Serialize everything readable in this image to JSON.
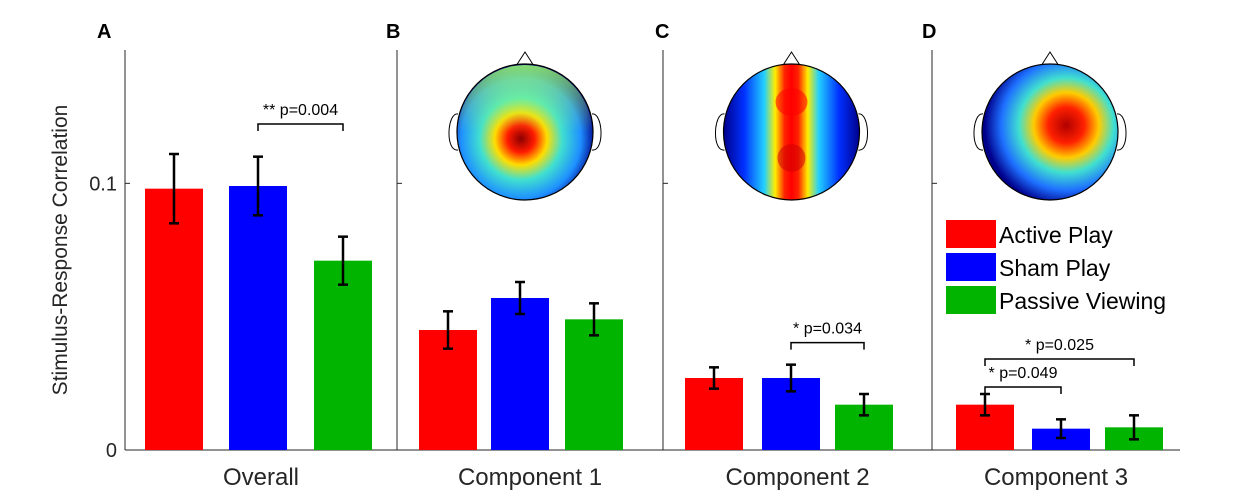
{
  "figure": {
    "ylabel": "Stimulus-Response Correlation",
    "ylim": [
      0,
      0.15
    ],
    "yticks": [
      {
        "value": 0,
        "label": "0"
      },
      {
        "value": 0.1,
        "label": "0.1"
      }
    ]
  },
  "legend": {
    "placement": "right, panel D",
    "entries": [
      {
        "label": "Active Play",
        "color": "#ff0000"
      },
      {
        "label": "Sham Play",
        "color": "#0000ff"
      },
      {
        "label": "Passive Viewing",
        "color": "#00b400"
      }
    ]
  },
  "chart_data": [
    {
      "type": "bar",
      "panel": "A",
      "xlabel": "Overall",
      "categories": [
        "Active Play",
        "Sham Play",
        "Passive Viewing"
      ],
      "values": [
        0.098,
        0.099,
        0.071
      ],
      "errors": [
        0.013,
        0.011,
        0.009
      ],
      "significance": [
        {
          "from": 1,
          "to": 2,
          "label": "** p=0.004"
        }
      ]
    },
    {
      "type": "bar",
      "panel": "B",
      "xlabel": "Component 1",
      "categories": [
        "Active Play",
        "Sham Play",
        "Passive Viewing"
      ],
      "values": [
        0.045,
        0.057,
        0.049
      ],
      "errors": [
        0.007,
        0.006,
        0.006
      ],
      "significance": [],
      "topomap": "frontal-central"
    },
    {
      "type": "bar",
      "panel": "C",
      "xlabel": "Component 2",
      "categories": [
        "Active Play",
        "Sham Play",
        "Passive Viewing"
      ],
      "values": [
        0.027,
        0.027,
        0.017
      ],
      "errors": [
        0.004,
        0.005,
        0.004
      ],
      "significance": [
        {
          "from": 1,
          "to": 2,
          "label": "* p=0.034"
        }
      ],
      "topomap": "midline"
    },
    {
      "type": "bar",
      "panel": "D",
      "xlabel": "Component 3",
      "categories": [
        "Active Play",
        "Sham Play",
        "Passive Viewing"
      ],
      "values": [
        0.017,
        0.008,
        0.0085
      ],
      "errors": [
        0.004,
        0.0035,
        0.0045
      ],
      "significance": [
        {
          "from": 0,
          "to": 2,
          "label": "* p=0.025"
        },
        {
          "from": 0,
          "to": 1,
          "label": "* p=0.049"
        }
      ],
      "topomap": "right-central"
    }
  ]
}
